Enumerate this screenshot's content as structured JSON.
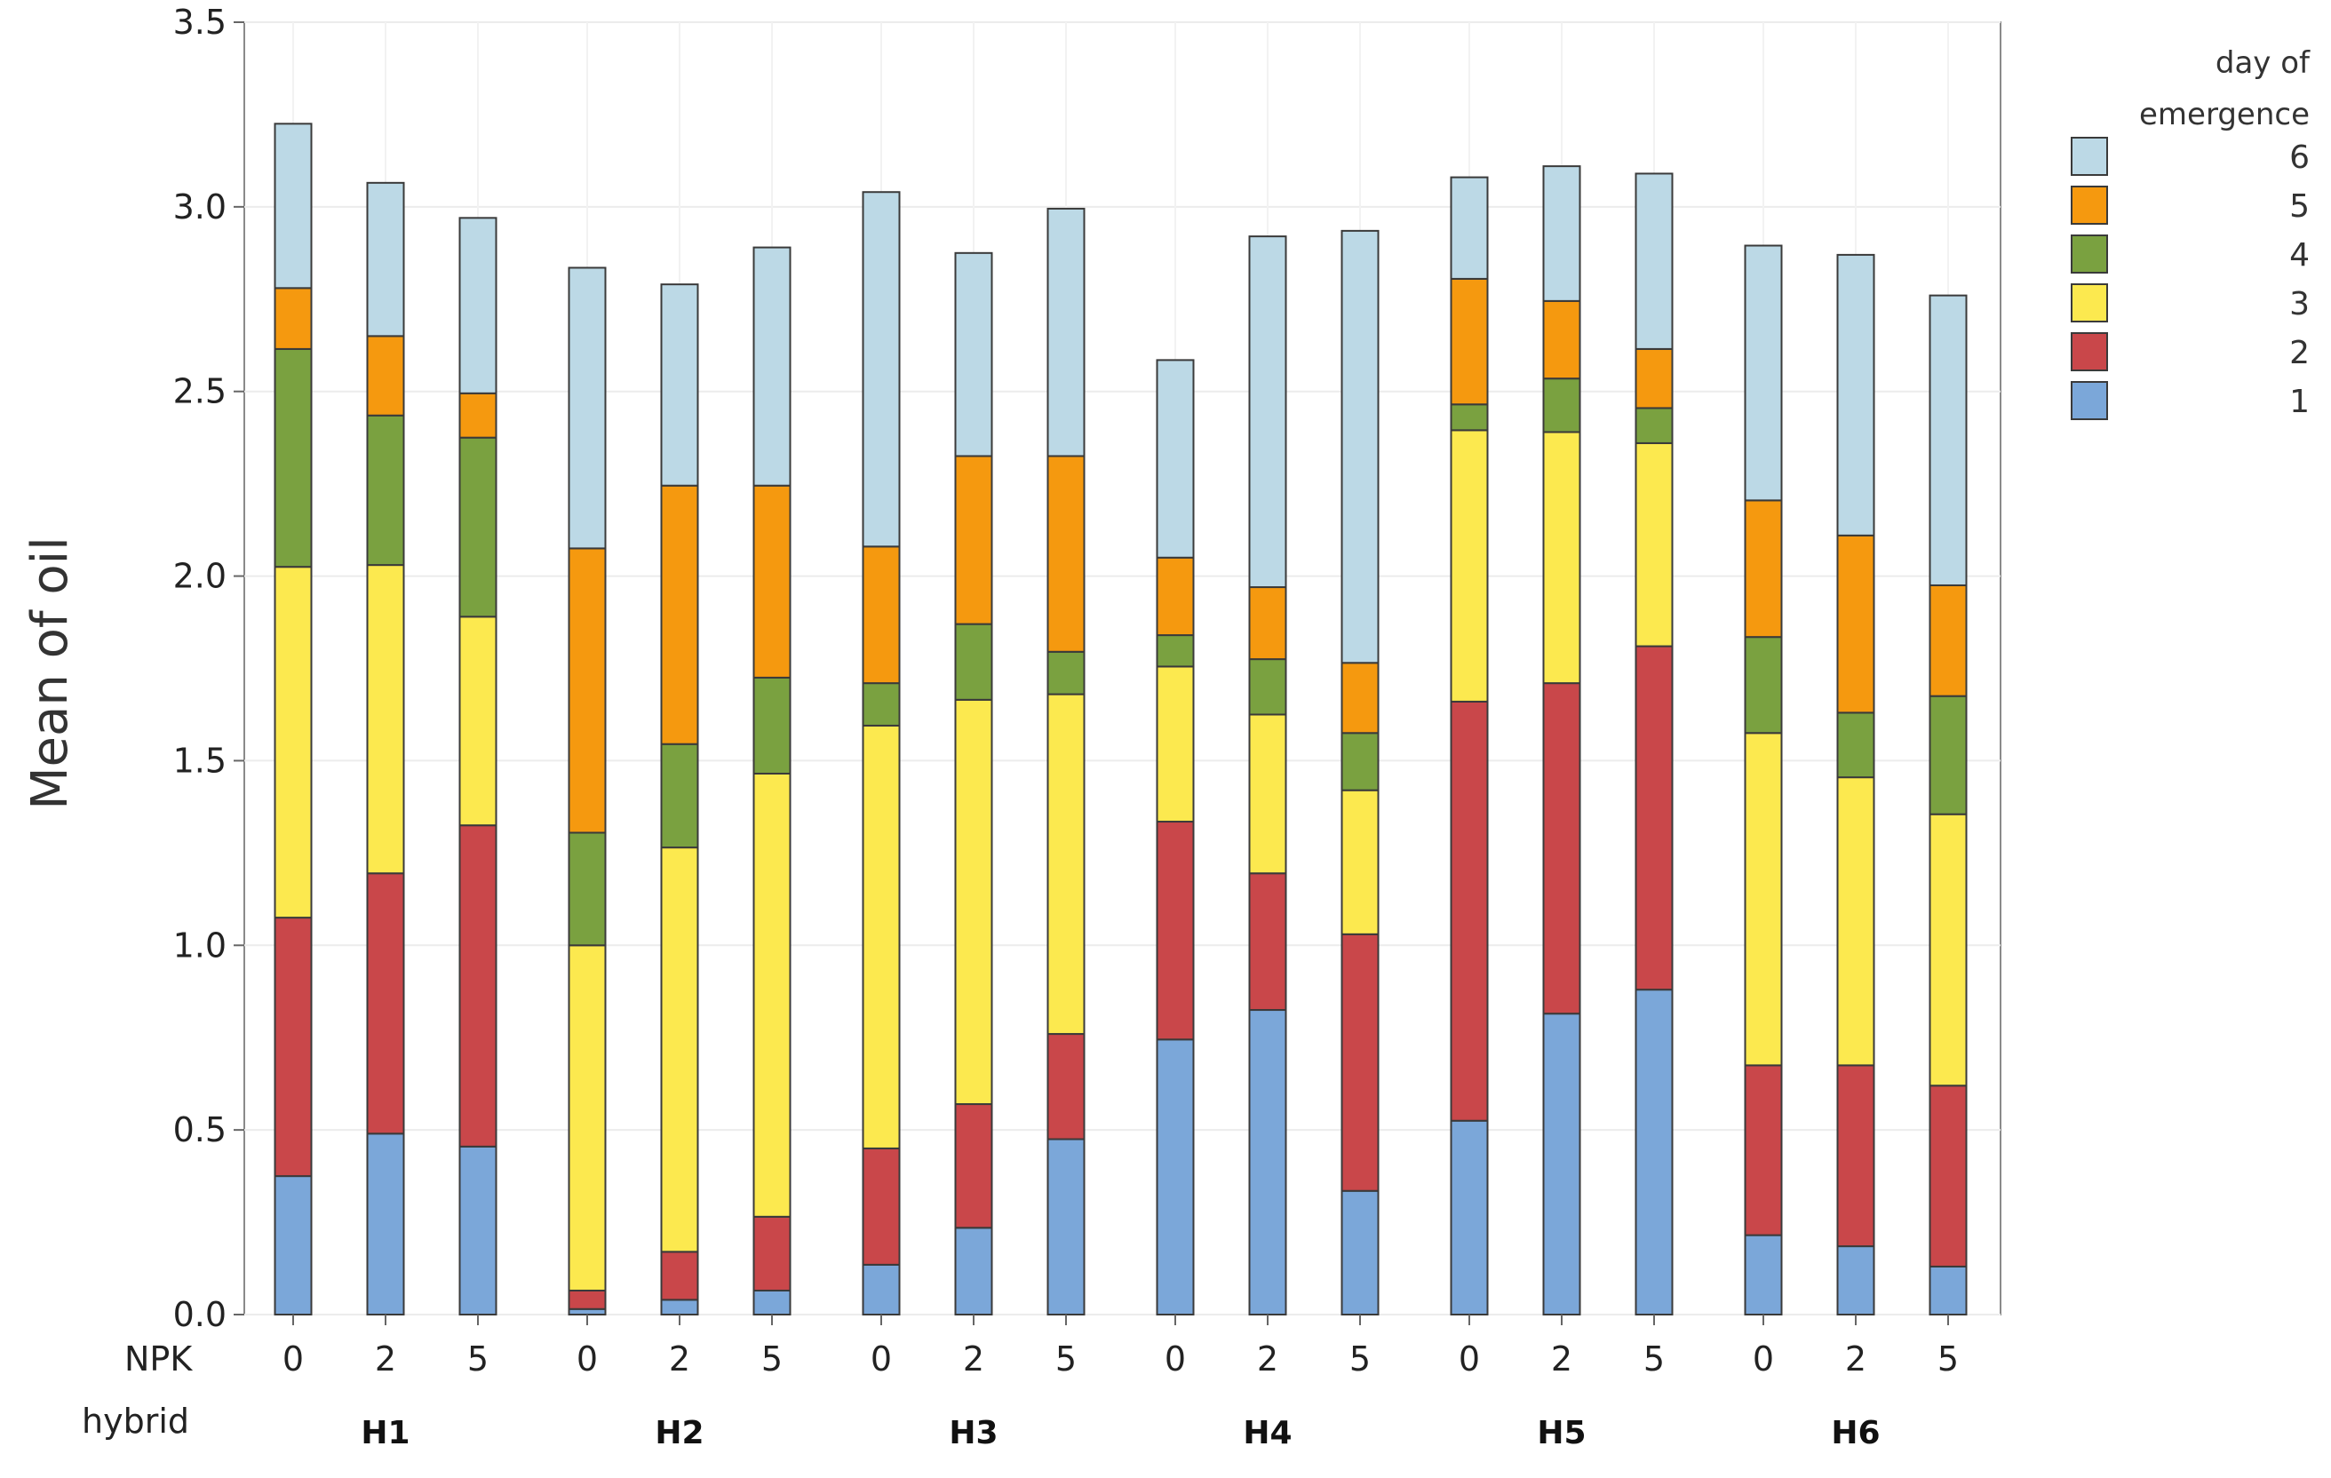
{
  "chart_data": {
    "type": "bar",
    "stacked": true,
    "ylabel": "Mean of oil",
    "ylim": [
      0,
      3.5
    ],
    "yticks": [
      "0.0",
      "0.5",
      "1.0",
      "1.5",
      "2.0",
      "2.5",
      "3.0",
      "3.5"
    ],
    "grid": true,
    "x_row_labels": {
      "npk": "NPK",
      "hybrid": "hybrid"
    },
    "hybrids": [
      "H1",
      "H2",
      "H3",
      "H4",
      "H5",
      "H6"
    ],
    "npk_levels": [
      "0",
      "2",
      "5"
    ],
    "legend": {
      "title_line1": "day of",
      "title_line2": "emergence",
      "position": "right"
    },
    "series": [
      {
        "name": "1",
        "color": "#7ba7d9"
      },
      {
        "name": "2",
        "color": "#c9474a"
      },
      {
        "name": "3",
        "color": "#fce94f"
      },
      {
        "name": "4",
        "color": "#7aa140"
      },
      {
        "name": "5",
        "color": "#f5990f"
      },
      {
        "name": "6",
        "color": "#bcd9e6"
      }
    ],
    "stacks": [
      [
        0.375,
        1.075,
        2.025,
        2.615,
        2.78,
        3.225
      ],
      [
        0.49,
        1.195,
        2.03,
        2.435,
        2.65,
        3.065
      ],
      [
        0.455,
        1.325,
        1.89,
        2.375,
        2.495,
        2.97
      ],
      [
        0.015,
        0.065,
        1.0,
        1.305,
        2.075,
        2.835
      ],
      [
        0.04,
        0.17,
        1.265,
        1.545,
        2.245,
        2.79
      ],
      [
        0.065,
        0.265,
        1.465,
        1.725,
        2.245,
        2.89
      ],
      [
        0.135,
        0.45,
        1.595,
        1.71,
        2.08,
        3.04
      ],
      [
        0.235,
        0.57,
        1.665,
        1.87,
        2.325,
        2.875
      ],
      [
        0.475,
        0.76,
        1.68,
        1.795,
        2.325,
        2.995
      ],
      [
        0.745,
        1.335,
        1.755,
        1.84,
        2.05,
        2.585
      ],
      [
        0.825,
        1.195,
        1.625,
        1.775,
        1.97,
        2.92
      ],
      [
        0.335,
        1.03,
        1.42,
        1.575,
        1.765,
        2.935
      ],
      [
        0.525,
        1.66,
        2.395,
        2.465,
        2.805,
        3.08
      ],
      [
        0.815,
        1.71,
        2.39,
        2.535,
        2.745,
        3.11
      ],
      [
        0.88,
        1.81,
        2.36,
        2.455,
        2.615,
        3.09
      ],
      [
        0.215,
        0.675,
        1.575,
        1.835,
        2.205,
        2.895
      ],
      [
        0.185,
        0.675,
        1.455,
        1.63,
        2.11,
        2.87
      ],
      [
        0.13,
        0.62,
        1.355,
        1.675,
        1.975,
        2.76
      ]
    ]
  }
}
